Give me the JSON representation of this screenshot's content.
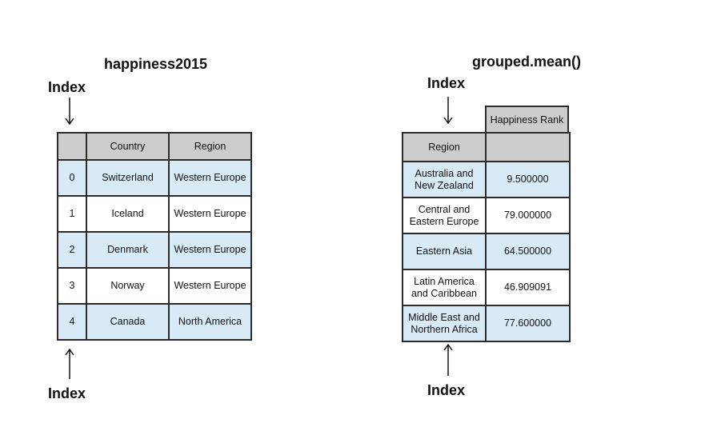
{
  "left": {
    "title": "happiness2015",
    "index_label_top": "Index",
    "index_label_bottom": "Index",
    "columns": [
      "",
      "Country",
      "Region"
    ],
    "rows": [
      [
        "0",
        "Switzerland",
        "Western Europe"
      ],
      [
        "1",
        "Iceland",
        "Western Europe"
      ],
      [
        "2",
        "Denmark",
        "Western Europe"
      ],
      [
        "3",
        "Norway",
        "Western Europe"
      ],
      [
        "4",
        "Canada",
        "North America"
      ]
    ]
  },
  "right": {
    "title": "grouped.mean()",
    "index_label_top": "Index",
    "index_label_bottom": "Index",
    "column_header": "Happiness Rank",
    "index_header": "Region",
    "rows": [
      [
        "Australia and New Zealand",
        "9.500000"
      ],
      [
        "Central and Eastern Europe",
        "79.000000"
      ],
      [
        "Eastern Asia",
        "64.500000"
      ],
      [
        "Latin America and Caribbean",
        "46.909091"
      ],
      [
        "Middle East and Northern Africa",
        "77.600000"
      ]
    ]
  },
  "colors": {
    "header_fill": "#cccccc",
    "highlight_fill": "#d9eaf7",
    "border": "#2b2b2b"
  }
}
